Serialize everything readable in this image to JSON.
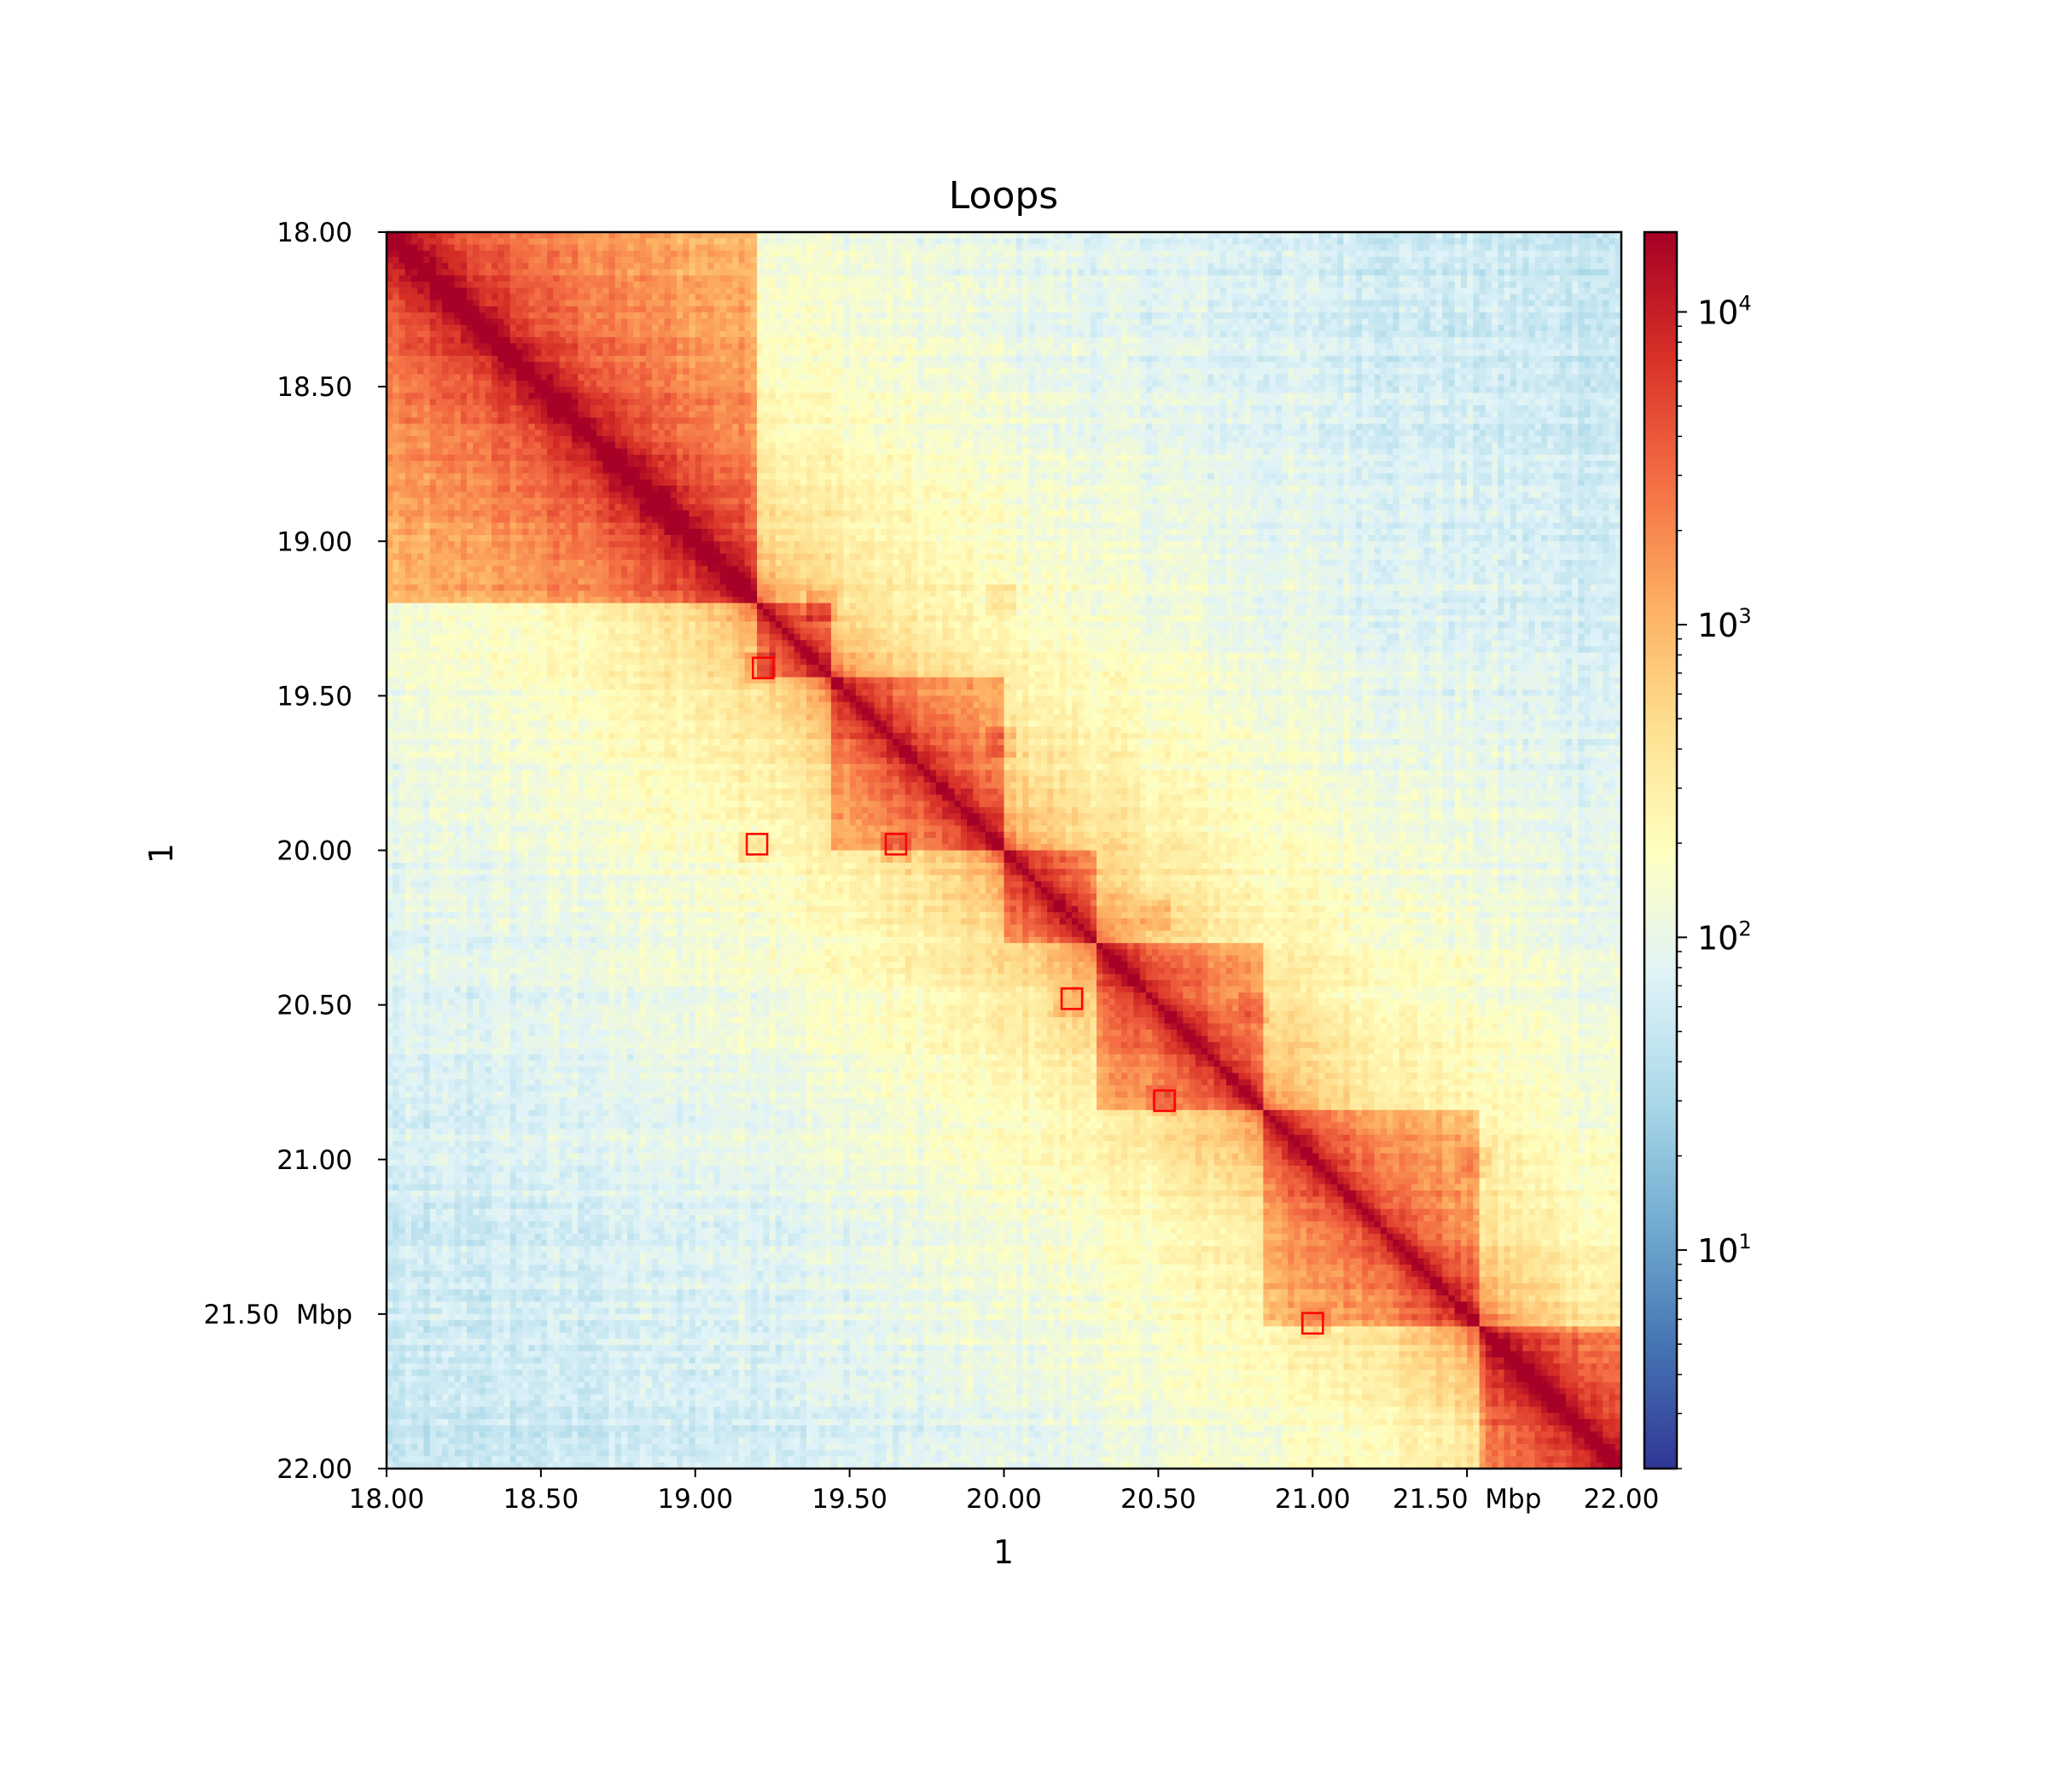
{
  "chart_data": {
    "type": "heatmap",
    "title": "Loops",
    "xlabel": "1",
    "ylabel": "1",
    "xlim": [
      18.0,
      22.0
    ],
    "ylim": [
      18.0,
      22.0
    ],
    "units": "Mbp",
    "x_ticks": [
      {
        "value": 18.0,
        "label": "18.00"
      },
      {
        "value": 18.5,
        "label": "18.50"
      },
      {
        "value": 19.0,
        "label": "19.00"
      },
      {
        "value": 19.5,
        "label": "19.50"
      },
      {
        "value": 20.0,
        "label": "20.00"
      },
      {
        "value": 20.5,
        "label": "20.50"
      },
      {
        "value": 21.0,
        "label": "21.00"
      },
      {
        "value": 21.5,
        "label": "21.50  Mbp"
      },
      {
        "value": 22.0,
        "label": "22.00"
      }
    ],
    "y_ticks": [
      {
        "value": 18.0,
        "label": "18.00"
      },
      {
        "value": 18.5,
        "label": "18.50"
      },
      {
        "value": 19.0,
        "label": "19.00"
      },
      {
        "value": 19.5,
        "label": "19.50"
      },
      {
        "value": 20.0,
        "label": "20.00"
      },
      {
        "value": 20.5,
        "label": "20.50"
      },
      {
        "value": 21.0,
        "label": "21.00"
      },
      {
        "value": 21.5,
        "label": "21.50  Mbp"
      },
      {
        "value": 22.0,
        "label": "22.00"
      }
    ],
    "colormap": "RdYlBu_r",
    "colorbar": {
      "scale": "log",
      "range": [
        2,
        18000
      ],
      "ticks": [
        {
          "value": 10,
          "base": "10",
          "exp": "1"
        },
        {
          "value": 100,
          "base": "10",
          "exp": "2"
        },
        {
          "value": 1000,
          "base": "10",
          "exp": "3"
        },
        {
          "value": 10000,
          "base": "10",
          "exp": "4"
        }
      ]
    },
    "tads": [
      [
        18.0,
        19.2
      ],
      [
        19.2,
        19.45
      ],
      [
        19.45,
        20.0
      ],
      [
        20.0,
        20.3
      ],
      [
        20.3,
        20.85
      ],
      [
        20.85,
        21.55
      ],
      [
        21.55,
        22.0
      ]
    ],
    "loops": [
      {
        "x": 19.22,
        "y": 19.41
      },
      {
        "x": 19.2,
        "y": 19.98
      },
      {
        "x": 19.65,
        "y": 19.98
      },
      {
        "x": 20.22,
        "y": 20.48
      },
      {
        "x": 20.52,
        "y": 20.81
      },
      {
        "x": 21.0,
        "y": 21.53
      }
    ],
    "loop_color": "#ff0000"
  }
}
